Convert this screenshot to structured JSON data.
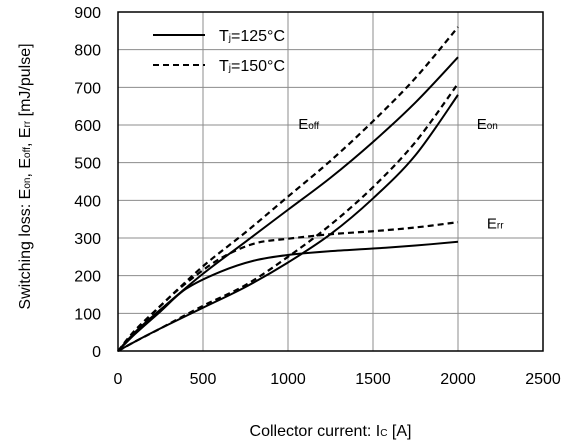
{
  "chart_data": {
    "type": "line",
    "title": "",
    "xlabel": {
      "text": "Collector current: I",
      "sub": "C",
      "unit": " [A]"
    },
    "ylabel": "Switching loss: E on, E off, E rr [mJ/pulse]",
    "ylabel_parts": [
      {
        "t": "Switching loss: E"
      },
      {
        "t": "on",
        "sub": true
      },
      {
        "t": ", E"
      },
      {
        "t": "off",
        "sub": true
      },
      {
        "t": ", E"
      },
      {
        "t": "rr",
        "sub": true
      },
      {
        "t": " [mJ/pulse]"
      }
    ],
    "xlim": [
      0,
      2500
    ],
    "ylim": [
      0,
      900
    ],
    "xticks": [
      0,
      500,
      1000,
      1500,
      2000,
      2500
    ],
    "yticks": [
      0,
      100,
      200,
      300,
      400,
      500,
      600,
      700,
      800,
      900
    ],
    "grid": true,
    "legend_position": "top-left",
    "legend": [
      {
        "label": "T",
        "sub": "j",
        "rest": "=125°C",
        "style": "solid"
      },
      {
        "label": "T",
        "sub": "j",
        "rest": "=150°C",
        "style": "dashed"
      }
    ],
    "annotations": [
      {
        "main": "E",
        "sub": "off",
        "at": [
          1060,
          590
        ]
      },
      {
        "main": "E",
        "sub": "on",
        "at": [
          2110,
          590
        ]
      },
      {
        "main": "E",
        "sub": "rr",
        "at": [
          2170,
          325
        ]
      }
    ],
    "series": [
      {
        "curve": "E_off",
        "style": "solid",
        "x": [
          0,
          100,
          250,
          500,
          750,
          1000,
          1250,
          1500,
          1750,
          2000
        ],
        "y": [
          0,
          50,
          110,
          205,
          290,
          375,
          460,
          555,
          660,
          780
        ]
      },
      {
        "curve": "E_off",
        "style": "dashed",
        "x": [
          0,
          100,
          250,
          500,
          750,
          1000,
          1250,
          1500,
          1750,
          2000
        ],
        "y": [
          0,
          55,
          120,
          225,
          315,
          410,
          505,
          610,
          725,
          860
        ]
      },
      {
        "curve": "E_on",
        "style": "solid",
        "x": [
          0,
          100,
          250,
          500,
          750,
          1000,
          1250,
          1500,
          1750,
          2000
        ],
        "y": [
          0,
          25,
          60,
          115,
          170,
          235,
          310,
          405,
          520,
          680
        ]
      },
      {
        "curve": "E_on",
        "style": "dashed",
        "x": [
          0,
          100,
          250,
          500,
          750,
          1000,
          1250,
          1500,
          1750,
          2000
        ],
        "y": [
          0,
          25,
          60,
          120,
          175,
          250,
          335,
          435,
          555,
          710
        ]
      },
      {
        "curve": "E_rr",
        "style": "solid",
        "x": [
          0,
          100,
          250,
          400,
          600,
          800,
          1000,
          1250,
          1500,
          1750,
          2000
        ],
        "y": [
          0,
          45,
          105,
          165,
          210,
          240,
          255,
          265,
          272,
          280,
          290
        ]
      },
      {
        "curve": "E_rr",
        "style": "dashed",
        "x": [
          0,
          100,
          250,
          400,
          600,
          800,
          1000,
          1250,
          1500,
          1750,
          2000
        ],
        "y": [
          0,
          50,
          120,
          180,
          245,
          285,
          298,
          310,
          318,
          328,
          342
        ]
      }
    ]
  }
}
